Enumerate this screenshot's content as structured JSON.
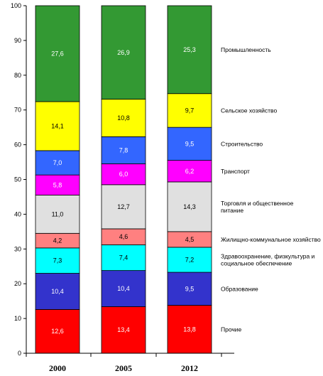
{
  "chart_data": {
    "type": "bar",
    "stacked": true,
    "percent_stacked": true,
    "title": "",
    "xlabel": "",
    "ylabel": "",
    "ylim": [
      0,
      100
    ],
    "yticks": [
      0,
      10,
      20,
      30,
      40,
      50,
      60,
      70,
      80,
      90,
      100
    ],
    "grid": false,
    "legend_placement": "right",
    "categories": [
      "2000",
      "2005",
      "2012"
    ],
    "series": [
      {
        "name": "Прочие",
        "values": [
          12.6,
          13.4,
          13.8
        ],
        "labels": [
          "12,6",
          "13,4",
          "13,8"
        ],
        "color": "#ff0000",
        "label_color": "#ffffff"
      },
      {
        "name": "Образование",
        "values": [
          10.4,
          10.4,
          9.5
        ],
        "labels": [
          "10,4",
          "10,4",
          "9,5"
        ],
        "color": "#3333cc",
        "label_color": "#ffffff"
      },
      {
        "name": "Здравоохранение, физкультура и социальное обеспечение",
        "values": [
          7.3,
          7.4,
          7.2
        ],
        "labels": [
          "7,3",
          "7,4",
          "7,2"
        ],
        "color": "#00ffff",
        "label_color": "#000000"
      },
      {
        "name": "Жилищно-коммунальное хозяйство",
        "values": [
          4.2,
          4.6,
          4.5
        ],
        "labels": [
          "4,2",
          "4,6",
          "4,5"
        ],
        "color": "#ff8080",
        "label_color": "#000000"
      },
      {
        "name": "Торговля и общественное питание",
        "values": [
          11.0,
          12.7,
          14.3
        ],
        "labels": [
          "11,0",
          "12,7",
          "14,3"
        ],
        "color": "#e0e0e0",
        "label_color": "#000000"
      },
      {
        "name": "Транспорт",
        "values": [
          5.8,
          6.0,
          6.2
        ],
        "labels": [
          "5,8",
          "6,0",
          "6,2"
        ],
        "color": "#ff00ff",
        "label_color": "#ffffff"
      },
      {
        "name": "Строительство",
        "values": [
          7.0,
          7.8,
          9.5
        ],
        "labels": [
          "7,0",
          "7,8",
          "9,5"
        ],
        "color": "#3366ff",
        "label_color": "#ffffff"
      },
      {
        "name": "Сельское хозяйство",
        "values": [
          14.1,
          10.8,
          9.7
        ],
        "labels": [
          "14,1",
          "10,8",
          "9,7"
        ],
        "color": "#ffff00",
        "label_color": "#000000"
      },
      {
        "name": "Промышленность",
        "values": [
          27.6,
          26.9,
          25.3
        ],
        "labels": [
          "27,6",
          "26,9",
          "25,3"
        ],
        "color": "#339933",
        "label_color": "#ffffff"
      }
    ],
    "legend": [
      {
        "series": 8,
        "lines": [
          "Промышленность"
        ]
      },
      {
        "series": 7,
        "lines": [
          "Сельское хозяйство"
        ]
      },
      {
        "series": 6,
        "lines": [
          "Строительство"
        ]
      },
      {
        "series": 5,
        "lines": [
          "Транспорт"
        ]
      },
      {
        "series": 4,
        "lines": [
          "Торговля и общественное",
          "питание"
        ]
      },
      {
        "series": 3,
        "lines": [
          "Жилищно-коммунальное хозяйство"
        ]
      },
      {
        "series": 2,
        "lines": [
          "Здравоохранение, физкультура и",
          "социальное обеспечение"
        ]
      },
      {
        "series": 1,
        "lines": [
          "Образование"
        ]
      },
      {
        "series": 0,
        "lines": [
          "Прочие"
        ]
      }
    ]
  }
}
